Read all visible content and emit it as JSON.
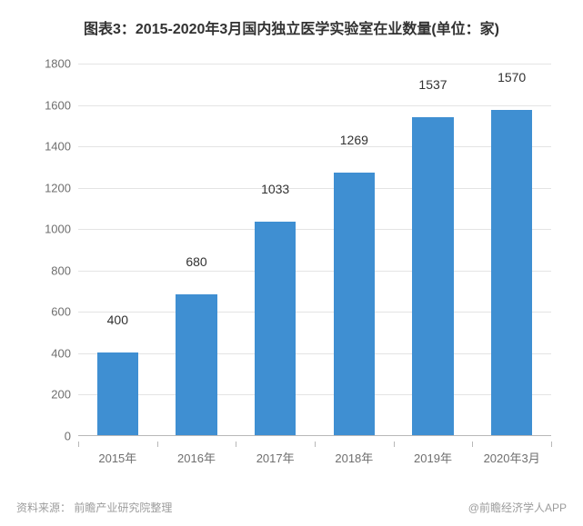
{
  "title": "图表3：2015-2020年3月国内独立医学实验室在业数量(单位：家)",
  "title_fontsize": 16,
  "title_color": "#323232",
  "chart": {
    "type": "bar",
    "categories": [
      "2015年",
      "2016年",
      "2017年",
      "2018年",
      "2019年",
      "2020年3月"
    ],
    "values": [
      400,
      680,
      1033,
      1269,
      1537,
      1570
    ],
    "bar_color": "#3f8fd2",
    "bar_width_ratio": 0.52,
    "ylim": [
      0,
      1800
    ],
    "ytick_step": 200,
    "background_color": "#ffffff",
    "grid_color": "#e4e4e4",
    "axis_color": "#b8b8b8",
    "axis_label_color": "#6f6f6f",
    "axis_label_fontsize": 13,
    "value_label_color": "#323232",
    "value_label_fontsize": 14
  },
  "source_label": "资料来源：",
  "source_text": "前瞻产业研究院整理",
  "attribution": "@前瞻经济学人APP",
  "footer_color": "#9c9c9c",
  "footer_fontsize": 12
}
